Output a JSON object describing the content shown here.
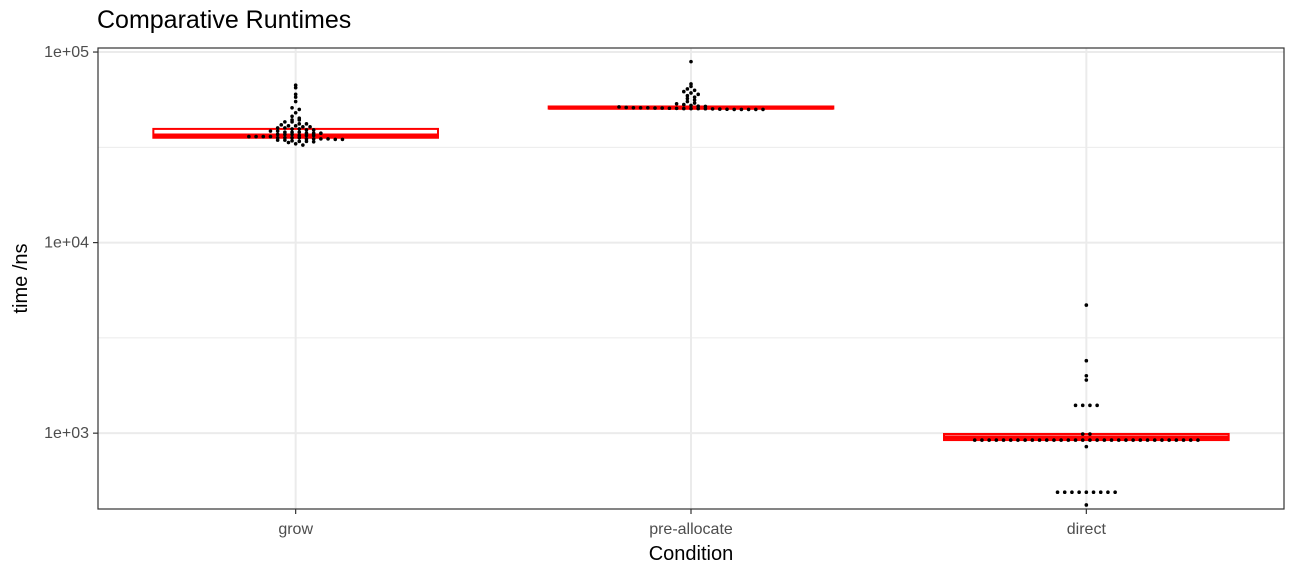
{
  "chart_data": {
    "type": "boxplot",
    "title": "Comparative Runtimes",
    "xlabel": "Condition",
    "ylabel": "time /ns",
    "y_scale": "log10",
    "ylim": [
      400,
      105000
    ],
    "y_ticks": [
      1000,
      10000,
      100000
    ],
    "y_tick_labels": [
      "1e+03",
      "1e+04",
      "1e+05"
    ],
    "categories": [
      "grow",
      "pre-allocate",
      "direct"
    ],
    "grid": true,
    "colors": {
      "box": "#ff0000",
      "points": "#000000",
      "grid": "#ebebeb",
      "panel_border": "#333333"
    },
    "boxes": [
      {
        "category": "grow",
        "q1": 35500,
        "median": 36500,
        "q3": 39500
      },
      {
        "category": "pre-allocate",
        "q1": 50500,
        "median": 51000,
        "q3": 51800
      },
      {
        "category": "direct",
        "q1": 920,
        "median": 950,
        "q3": 990
      }
    ],
    "points": {
      "grow": [
        67000,
        65000,
        60000,
        58000,
        55000,
        51000,
        50000,
        48000,
        46000,
        45000,
        44000,
        44000,
        43000,
        43000,
        42000,
        42000,
        41500,
        41000,
        41000,
        40500,
        40500,
        40000,
        40000,
        39500,
        39500,
        39000,
        39000,
        38500,
        38500,
        38000,
        38000,
        38000,
        37500,
        37500,
        37500,
        37000,
        37000,
        37000,
        36500,
        36500,
        36500,
        36000,
        36000,
        36000,
        36000,
        35500,
        35500,
        35500,
        35500,
        35000,
        35000,
        35000,
        35000,
        34800,
        34800,
        34500,
        34500,
        34200,
        34000,
        34000,
        33800,
        33500,
        33000,
        32500
      ],
      "pre-allocate": [
        89000,
        68000,
        66000,
        64000,
        63000,
        62000,
        61000,
        60000,
        59000,
        58000,
        57000,
        56000,
        55000,
        54000,
        53500,
        53000,
        52500,
        52000,
        51800,
        51500,
        51200,
        51000,
        51000,
        51000,
        50800,
        50800,
        50700,
        50600,
        50500,
        50500,
        50500,
        50400,
        50300,
        50200,
        50100,
        50000,
        50000,
        50000,
        50000,
        50000
      ],
      "direct": [
        4700,
        2400,
        2000,
        1900,
        1400,
        1400,
        1400,
        1400,
        990,
        990,
        920,
        920,
        920,
        920,
        920,
        920,
        920,
        920,
        920,
        920,
        920,
        920,
        920,
        920,
        920,
        920,
        920,
        920,
        920,
        920,
        920,
        920,
        920,
        920,
        920,
        920,
        920,
        920,
        920,
        920,
        920,
        920,
        850,
        490,
        490,
        490,
        490,
        490,
        490,
        490,
        490,
        490,
        420
      ]
    }
  }
}
